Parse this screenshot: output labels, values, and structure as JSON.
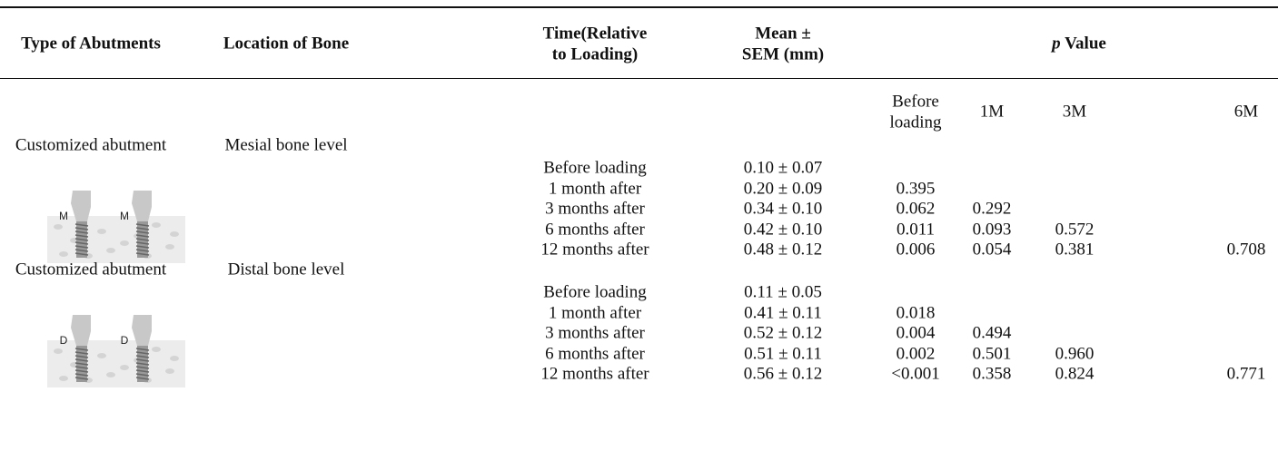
{
  "header": {
    "columns": [
      "Type of Abutments",
      "Location of Bone"
    ],
    "time_lines": [
      "Time(Relative",
      "to Loading)"
    ],
    "mean_lines": [
      "Mean ±",
      "SEM (mm)"
    ],
    "p_value": {
      "symbol": "p",
      "text": "Value"
    },
    "p_first_lines": [
      "Before",
      "loading"
    ],
    "p_subcolumns": [
      "1M",
      "3M",
      "6M"
    ]
  },
  "groups": [
    {
      "abutment": "Customized abutment",
      "location": "Mesial bone level",
      "image_label": "M",
      "rows": [
        {
          "time": "Before loading",
          "mean": "0.10 ± 0.07",
          "p": []
        },
        {
          "time": "1 month after",
          "mean": "0.20 ± 0.09",
          "p": [
            "0.395"
          ]
        },
        {
          "time": "3 months after",
          "mean": "0.34 ± 0.10",
          "p": [
            "0.062",
            "0.292"
          ]
        },
        {
          "time": "6 months after",
          "mean": "0.42 ± 0.10",
          "p": [
            "0.011",
            "0.093",
            "0.572"
          ]
        },
        {
          "time": "12 months after",
          "mean": "0.48 ± 0.12",
          "p": [
            "0.006",
            "0.054",
            "0.381",
            "0.708"
          ]
        }
      ]
    },
    {
      "abutment": "Customized abutment",
      "location": "Distal bone level",
      "image_label": "D",
      "rows": [
        {
          "time": "Before loading",
          "mean": "0.11 ± 0.05",
          "p": []
        },
        {
          "time": "1 month after",
          "mean": "0.41 ± 0.11",
          "p": [
            "0.018"
          ]
        },
        {
          "time": "3 months after",
          "mean": "0.52 ± 0.12",
          "p": [
            "0.004",
            "0.494"
          ]
        },
        {
          "time": "6 months after",
          "mean": "0.51 ± 0.11",
          "p": [
            "0.002",
            "0.501",
            "0.960"
          ]
        },
        {
          "time": "12 months after",
          "mean": "0.56 ± 0.12",
          "p": [
            "<0.001",
            "0.358",
            "0.824",
            "0.771"
          ]
        }
      ]
    }
  ]
}
